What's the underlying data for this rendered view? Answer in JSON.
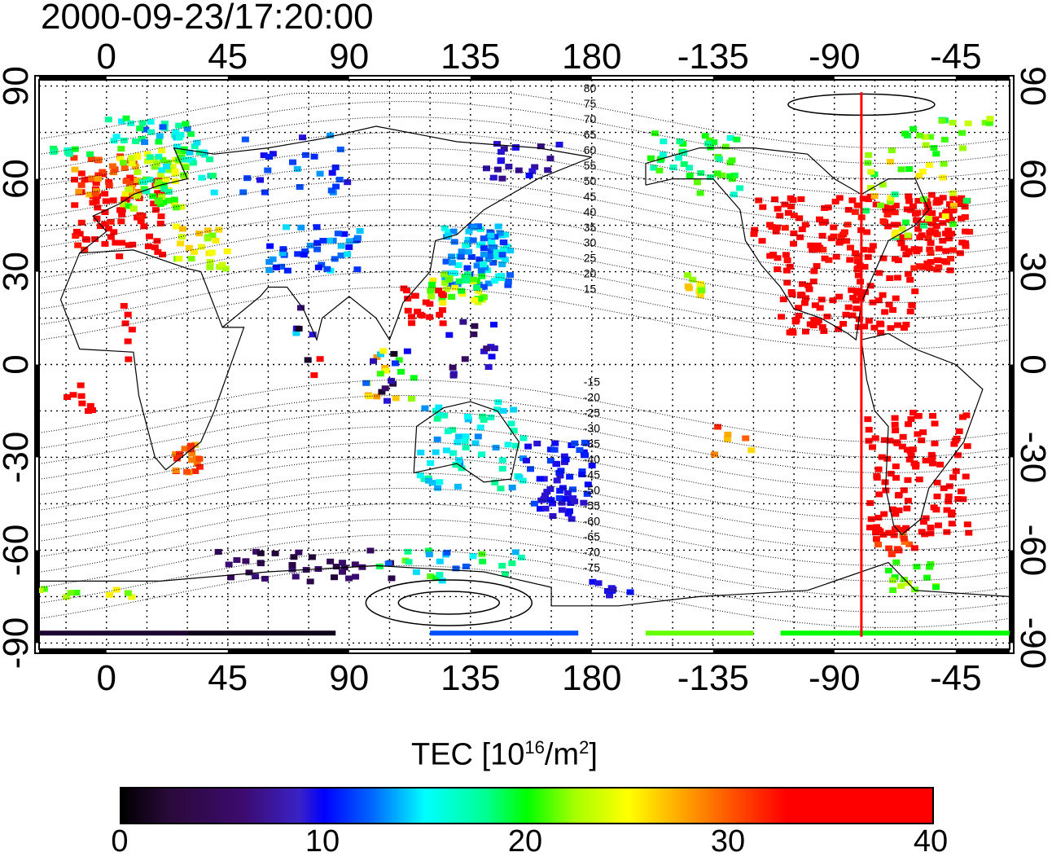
{
  "timestamp": "2000-09-23/17:20:00",
  "colorbar": {
    "title_main": "TEC  [10",
    "title_exp1": "16",
    "title_mid": "/m",
    "title_exp2": "2",
    "title_end": "]",
    "ticks": [
      "0",
      "10",
      "20",
      "30",
      "40"
    ]
  },
  "axes": {
    "lon_ticks": [
      {
        "label": "0",
        "lon": 0
      },
      {
        "label": "45",
        "lon": 45
      },
      {
        "label": "90",
        "lon": 90
      },
      {
        "label": "135",
        "lon": 135
      },
      {
        "label": "180",
        "lon": 180
      },
      {
        "label": "-135",
        "lon": 225
      },
      {
        "label": "-90",
        "lon": 270
      },
      {
        "label": "-45",
        "lon": 315
      }
    ],
    "lat_ticks": [
      {
        "label": "90",
        "lat": 90
      },
      {
        "label": "60",
        "lat": 60
      },
      {
        "label": "30",
        "lat": 30
      },
      {
        "label": "0",
        "lat": 0
      },
      {
        "label": "-30",
        "lat": -30
      },
      {
        "label": "-60",
        "lat": -60
      },
      {
        "label": "-90",
        "lat": -90
      }
    ],
    "lon_range": [
      -25,
      335
    ],
    "lat_range": [
      -92,
      92
    ]
  },
  "contour_labels": [
    "80",
    "75",
    "70",
    "65",
    "60",
    "55",
    "50",
    "45",
    "40",
    "35",
    "30",
    "25",
    "20",
    "15",
    "-15",
    "-20",
    "-25",
    "-30",
    "-35",
    "-40",
    "-45",
    "-50",
    "-55",
    "-60",
    "-65",
    "-70",
    "-75"
  ],
  "terminator_lon": 280,
  "colors": {
    "terminator": "#ff0000",
    "frame": "#000000"
  }
}
